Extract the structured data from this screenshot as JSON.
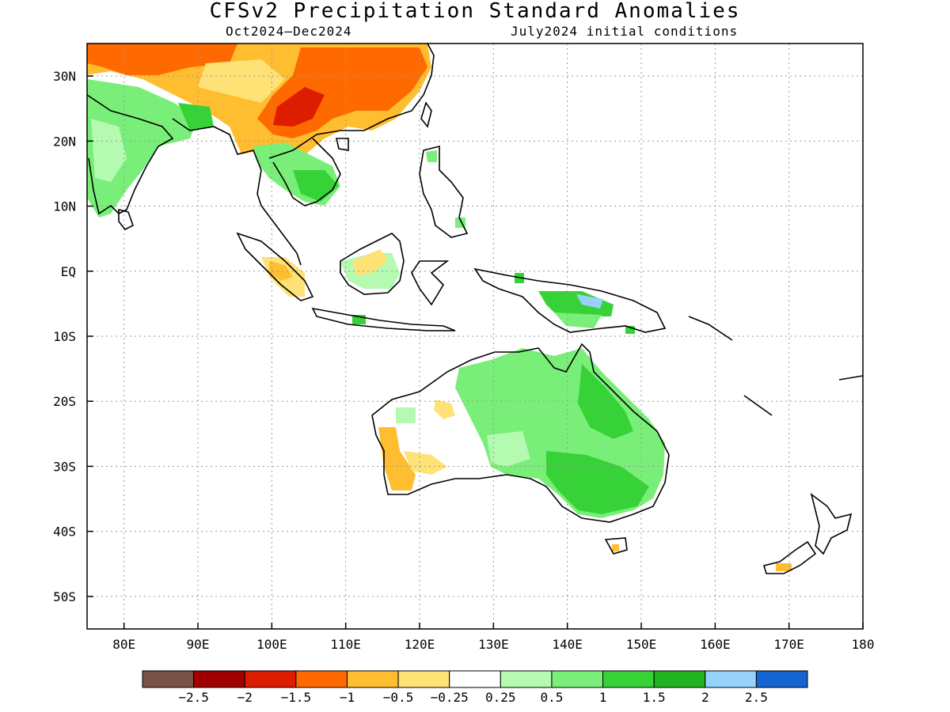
{
  "title": "CFSv2 Precipitation Standard Anomalies",
  "period": "Oct2024–Dec2024",
  "initial_conditions": "July2024 initial conditions",
  "lat_ticks": [
    "30N",
    "20N",
    "10N",
    "EQ",
    "10S",
    "20S",
    "30S",
    "40S",
    "50S"
  ],
  "lon_ticks": [
    "80E",
    "90E",
    "100E",
    "110E",
    "120E",
    "130E",
    "140E",
    "150E",
    "160E",
    "170E",
    "180"
  ],
  "colorbar": {
    "colors": [
      "#7a5146",
      "#a00000",
      "#dd1c00",
      "#ff6a00",
      "#ffbd30",
      "#ffe275",
      "#ffffff",
      "#b4fab1",
      "#79ee79",
      "#37d237",
      "#1fb41f",
      "#96d2fa",
      "#1464d2"
    ],
    "labels": [
      "−2.5",
      "−2",
      "−1.5",
      "−1",
      "−0.5",
      "−0.25",
      "0.25",
      "0.5",
      "1",
      "1.5",
      "2",
      "2.5"
    ]
  },
  "map": {
    "lon_range": [
      75,
      180
    ],
    "lat_range": [
      -55,
      35
    ],
    "lat_values": [
      30,
      20,
      10,
      0,
      -10,
      -20,
      -30,
      -40,
      -50
    ],
    "lon_values": [
      80,
      90,
      100,
      110,
      120,
      130,
      140,
      150,
      160,
      170,
      180
    ]
  }
}
